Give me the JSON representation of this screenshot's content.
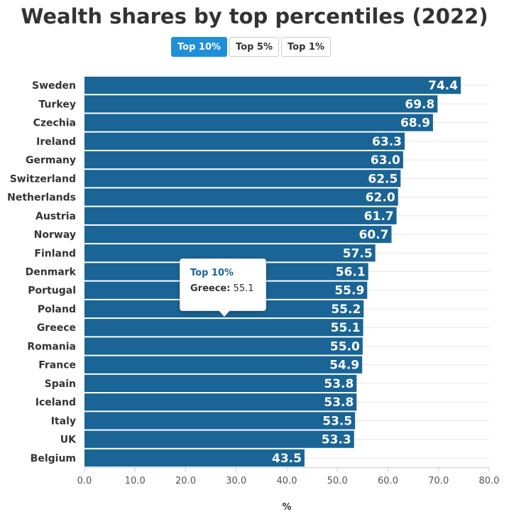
{
  "title": "Wealth shares by top percentiles (2022)",
  "tabs": [
    {
      "label": "Top 10%",
      "active": true
    },
    {
      "label": "Top 5%",
      "active": false
    },
    {
      "label": "Top 1%",
      "active": false
    }
  ],
  "tooltip": {
    "series": "Top 10%",
    "label": "Greece:",
    "value": "55.1"
  },
  "colors": {
    "bar": "#1a6496",
    "accent": "#1f8fd8"
  },
  "chart_data": {
    "type": "bar",
    "orientation": "horizontal",
    "title": "Wealth shares by top percentiles (2022)",
    "xlabel": "%",
    "ylabel": "",
    "xlim": [
      0,
      80
    ],
    "xticks": [
      "0.0",
      "10.0",
      "20.0",
      "30.0",
      "40.0",
      "50.0",
      "60.0",
      "70.0",
      "80.0"
    ],
    "grid": true,
    "categories": [
      "Sweden",
      "Turkey",
      "Czechia",
      "Ireland",
      "Germany",
      "Switzerland",
      "Netherlands",
      "Austria",
      "Norway",
      "Finland",
      "Denmark",
      "Portugal",
      "Poland",
      "Greece",
      "Romania",
      "France",
      "Spain",
      "Iceland",
      "Italy",
      "UK",
      "Belgium"
    ],
    "series": [
      {
        "name": "Top 10%",
        "values": [
          74.4,
          69.8,
          68.9,
          63.3,
          63.0,
          62.5,
          62.0,
          61.7,
          60.7,
          57.5,
          56.1,
          55.9,
          55.2,
          55.1,
          55.0,
          54.9,
          53.8,
          53.8,
          53.5,
          53.3,
          43.5
        ]
      }
    ]
  }
}
